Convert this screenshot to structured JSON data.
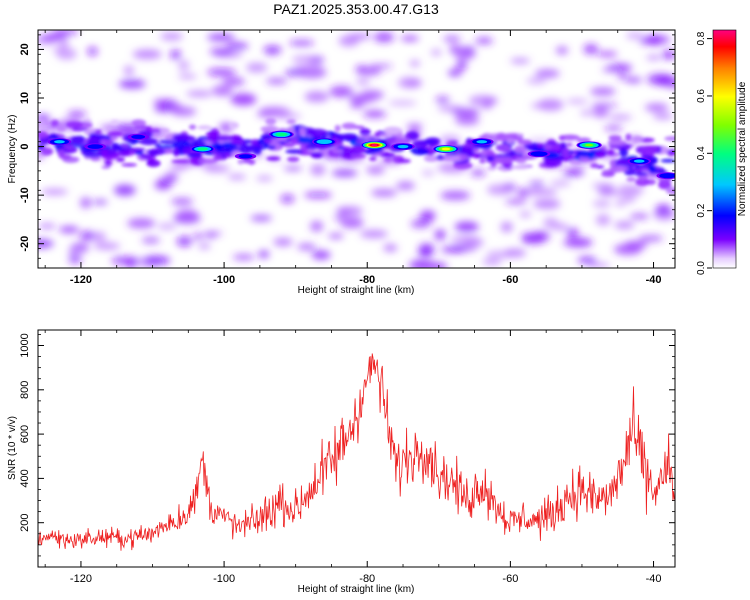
{
  "title": "PAZ1.2025.353.00.47.G13",
  "chart_data": [
    {
      "type": "heatmap",
      "title": "PAZ1.2025.353.00.47.G13",
      "xlabel": "Height of straight line (km)",
      "ylabel": "Frequency (Hz)",
      "xlim": [
        -126,
        -37
      ],
      "ylim": [
        -25,
        24
      ],
      "xticks": [
        -120,
        -100,
        -80,
        -60,
        -40
      ],
      "yticks": [
        -20,
        -10,
        0,
        10,
        20
      ],
      "xtick_labels": [
        "-120",
        "-100",
        "-80",
        "-60",
        "-40"
      ],
      "ytick_labels": [
        "-20",
        "-10",
        "0",
        "10",
        "20"
      ],
      "grid": false,
      "colorbar": {
        "label": "Normalized spectral amplitude",
        "range": [
          0,
          0.83
        ],
        "ticks": [
          0.0,
          0.2,
          0.4,
          0.6,
          0.8
        ],
        "tick_labels": [
          "0.0",
          "0.2",
          "0.4",
          "0.6",
          "0.8"
        ],
        "colormap": [
          "#ffffff",
          "#7a00ff",
          "#0000ff",
          "#00c8ff",
          "#00ff80",
          "#80ff00",
          "#ffff00",
          "#ff8000",
          "#ff0000",
          "#ff0080"
        ]
      },
      "ridge": {
        "description_values": "center frequency (Hz) of the main energy band vs height (km)",
        "height": [
          -126,
          -120,
          -110,
          -100,
          -90,
          -80,
          -70,
          -60,
          -50,
          -45,
          -40,
          -37
        ],
        "center_freq": [
          1.5,
          0.5,
          0.2,
          0.0,
          1.5,
          0.5,
          -0.5,
          -1.0,
          -1.5,
          -2.5,
          -4.0,
          -6.0
        ],
        "band_halfwidth_hz": [
          3,
          4,
          4,
          3,
          4,
          3,
          3,
          3,
          3,
          4,
          5,
          6
        ]
      },
      "peaks": [
        {
          "height": -79,
          "freq": 0.3,
          "amplitude": 0.83
        },
        {
          "height": -69,
          "freq": -0.5,
          "amplitude": 0.62
        },
        {
          "height": -49,
          "freq": 0.3,
          "amplitude": 0.5
        },
        {
          "height": -92,
          "freq": 2.5,
          "amplitude": 0.45
        },
        {
          "height": -103,
          "freq": -0.5,
          "amplitude": 0.42
        },
        {
          "height": -86,
          "freq": 1.0,
          "amplitude": 0.38
        },
        {
          "height": -64,
          "freq": 1.0,
          "amplitude": 0.3
        },
        {
          "height": -123,
          "freq": 1.0,
          "amplitude": 0.3
        },
        {
          "height": -42,
          "freq": -3.0,
          "amplitude": 0.3
        },
        {
          "height": -75,
          "freq": 0.0,
          "amplitude": 0.3
        },
        {
          "height": -56,
          "freq": -1.5,
          "amplitude": 0.25
        },
        {
          "height": -38,
          "freq": -6.0,
          "amplitude": 0.25
        },
        {
          "height": -118,
          "freq": 0.0,
          "amplitude": 0.22
        },
        {
          "height": -112,
          "freq": 2.0,
          "amplitude": 0.2
        },
        {
          "height": -97,
          "freq": -2.0,
          "amplitude": 0.2
        }
      ]
    },
    {
      "type": "line",
      "title": "",
      "xlabel": "Height of straight line (km)",
      "ylabel": "SNR (10 * v/v)",
      "xlim": [
        -126,
        -37
      ],
      "ylim": [
        0,
        1070
      ],
      "xticks": [
        -120,
        -100,
        -80,
        -60,
        -40
      ],
      "yticks": [
        200,
        400,
        600,
        800,
        1000
      ],
      "xtick_labels": [
        "-120",
        "-100",
        "-80",
        "-60",
        "-40"
      ],
      "ytick_labels": [
        "200",
        "400",
        "600",
        "800",
        "1000"
      ],
      "grid": false,
      "line_color": "#ee2020",
      "series": [
        {
          "name": "SNR",
          "x": [
            -126,
            -124,
            -122,
            -120,
            -118,
            -116,
            -114,
            -112,
            -110,
            -108,
            -106,
            -104,
            -103,
            -102,
            -100,
            -98,
            -96,
            -94,
            -92,
            -90,
            -88,
            -86,
            -84,
            -82,
            -80,
            -79,
            -78,
            -76,
            -74,
            -72,
            -70,
            -68,
            -66,
            -64,
            -62,
            -60,
            -58,
            -56,
            -54,
            -52,
            -50,
            -48,
            -46,
            -44,
            -43,
            -42,
            -41,
            -40,
            -38,
            -37
          ],
          "y": [
            130,
            140,
            120,
            125,
            130,
            135,
            125,
            140,
            150,
            200,
            220,
            300,
            500,
            280,
            220,
            180,
            200,
            240,
            300,
            250,
            350,
            430,
            520,
            650,
            850,
            930,
            800,
            450,
            500,
            550,
            420,
            380,
            300,
            380,
            280,
            200,
            220,
            210,
            240,
            320,
            350,
            300,
            320,
            480,
            620,
            520,
            420,
            330,
            450,
            300
          ],
          "spread": [
            60,
            60,
            60,
            60,
            60,
            60,
            60,
            70,
            80,
            90,
            100,
            120,
            130,
            120,
            100,
            90,
            110,
            130,
            150,
            140,
            170,
            200,
            230,
            250,
            180,
            120,
            180,
            200,
            190,
            200,
            180,
            160,
            150,
            170,
            140,
            110,
            120,
            120,
            130,
            160,
            170,
            160,
            170,
            200,
            230,
            220,
            200,
            180,
            200,
            150
          ]
        }
      ]
    }
  ]
}
